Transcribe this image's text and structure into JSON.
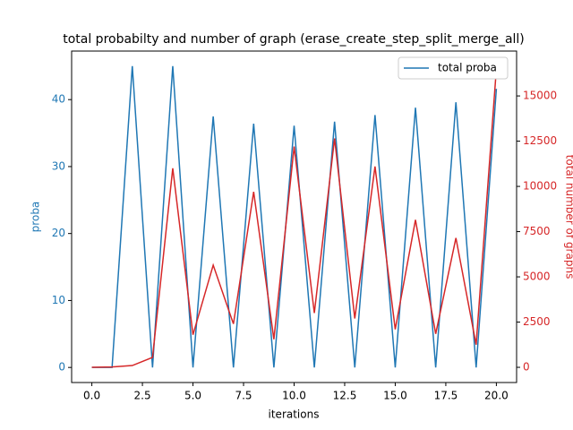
{
  "chart_data": {
    "type": "line",
    "title": "total probabilty and number of graph (erase_create_step_split_merge_all)",
    "xlabel": "iterations",
    "ylabel": "proba",
    "y2label": "total number of graphs",
    "x": [
      0,
      1,
      2,
      3,
      4,
      5,
      6,
      7,
      8,
      9,
      10,
      11,
      12,
      13,
      14,
      15,
      16,
      17,
      18,
      19,
      20
    ],
    "series": [
      {
        "name": "total proba",
        "color": "#1f77b4",
        "values": [
          0,
          0,
          45,
          0,
          45,
          0,
          37.5,
          0,
          36.4,
          0,
          36.1,
          0,
          36.7,
          0,
          37.7,
          0,
          38.8,
          0,
          39.6,
          0,
          41.6
        ]
      },
      {
        "color": "#d62728",
        "axis": "y2",
        "values": [
          0,
          20,
          100,
          550,
          11000,
          1800,
          5650,
          2400,
          9700,
          1550,
          12200,
          3000,
          12650,
          2700,
          11100,
          2100,
          8150,
          1850,
          7150,
          1250,
          16500
        ]
      }
    ],
    "xlim": [
      -1,
      21
    ],
    "xticks": [
      {
        "value": 0,
        "label": "0.0"
      },
      {
        "value": 2.5,
        "label": "2.5"
      },
      {
        "value": 5,
        "label": "5.0"
      },
      {
        "value": 7.5,
        "label": "7.5"
      },
      {
        "value": 10,
        "label": "10.0"
      },
      {
        "value": 12.5,
        "label": "12.5"
      },
      {
        "value": 15,
        "label": "15.0"
      },
      {
        "value": 17.5,
        "label": "17.5"
      },
      {
        "value": 20,
        "label": "20.0"
      }
    ],
    "ylim": [
      -2.25,
      47.25
    ],
    "yticks": [
      0,
      10,
      20,
      30,
      40
    ],
    "y2lim": [
      -840,
      17480
    ],
    "y2ticks": [
      0,
      2500,
      5000,
      7500,
      10000,
      12500,
      15000
    ],
    "legend": "upper right"
  }
}
